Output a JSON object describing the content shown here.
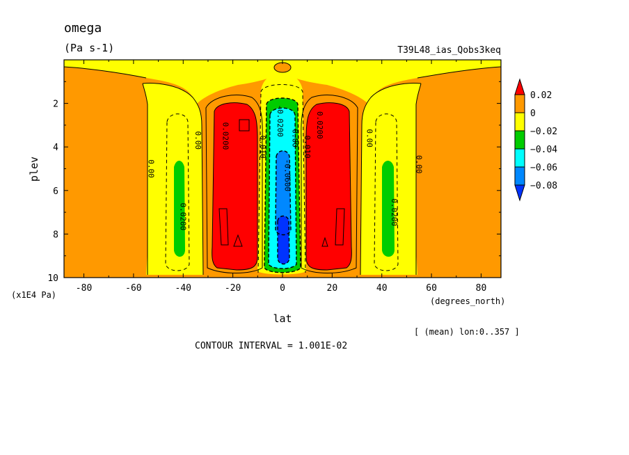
{
  "chart_data": {
    "type": "contour",
    "title": "omega",
    "units": "(Pa s-1)",
    "dataset": "T39L48_ias_Qobs3keq",
    "xlabel": "lat",
    "xunits": "(degrees_north)",
    "ylabel": "plev",
    "yunits": "(x1E4 Pa)",
    "xlim": [
      -88,
      88
    ],
    "ylim": [
      10,
      0
    ],
    "x_ticks": [
      -80,
      -60,
      -40,
      -20,
      0,
      20,
      40,
      60,
      80
    ],
    "x_tick_labels": [
      "-80",
      "-60",
      "-40",
      "-20",
      "0",
      "20",
      "40",
      "60",
      "80"
    ],
    "y_ticks": [
      2,
      4,
      6,
      8,
      10
    ],
    "y_tick_labels": [
      "2",
      "4",
      "6",
      "8",
      "10"
    ],
    "annotation_lon": "[ (mean) lon:0..357 ]",
    "contour_interval": "CONTOUR INTERVAL = 1.001E-02",
    "colorbar": {
      "levels": [
        0.02,
        0,
        -0.02,
        -0.04,
        -0.06,
        -0.08
      ],
      "labels": [
        "0.02",
        "0",
        "−0.02",
        "−0.04",
        "−0.06",
        "−0.08"
      ],
      "colors": [
        "#ff0000",
        "#ff9900",
        "#ffff00",
        "#00cc00",
        "#00ffff",
        "#0088ff",
        "#0033ff"
      ]
    },
    "contour_labels": [
      {
        "text": "0.00",
        "lat": -54,
        "p": 5.0
      },
      {
        "text": "0.00",
        "lat": -35,
        "p": 3.7
      },
      {
        "text": "0.0200",
        "lat": -41,
        "p": 7.2
      },
      {
        "text": "0.0200",
        "lat": -24,
        "p": 3.5
      },
      {
        "text": "0.010",
        "lat": -9,
        "p": 4.0
      },
      {
        "text": "-0.0200",
        "lat": -2,
        "p": 2.8
      },
      {
        "text": "-0.0600",
        "lat": 1,
        "p": 5.3
      },
      {
        "text": "0.00",
        "lat": 4,
        "p": 3.6
      },
      {
        "text": "0.010",
        "lat": 9,
        "p": 4.0
      },
      {
        "text": "0.0200",
        "lat": 14,
        "p": 3.0
      },
      {
        "text": "0.00",
        "lat": 34,
        "p": 3.6
      },
      {
        "text": "0.0200",
        "lat": 44,
        "p": 7.0
      },
      {
        "text": "0.00",
        "lat": 54,
        "p": 4.8
      }
    ]
  }
}
